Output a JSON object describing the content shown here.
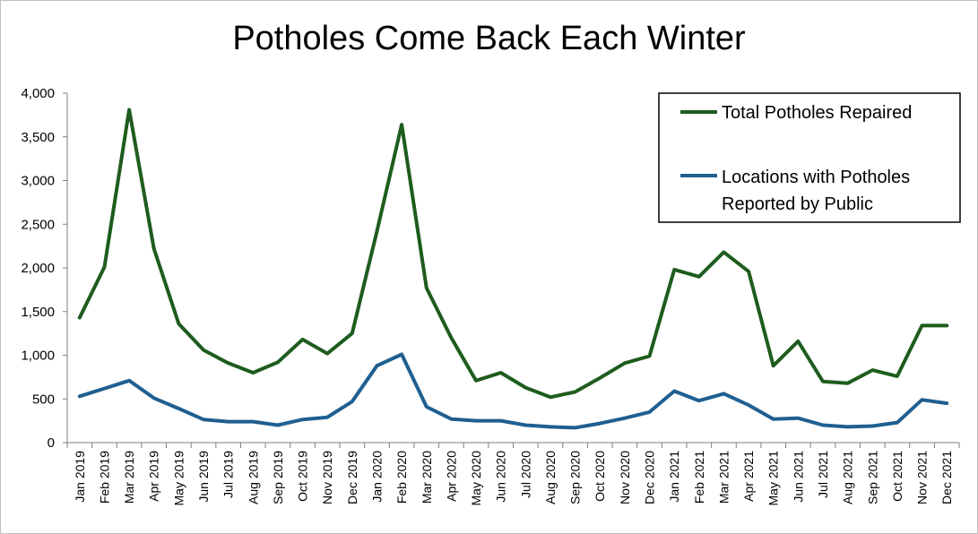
{
  "chart_data": {
    "type": "line",
    "title": "Potholes Come Back Each Winter",
    "xlabel": "",
    "ylabel": "",
    "ylim": [
      0,
      4000
    ],
    "yticks": [
      "0",
      "500",
      "1,000",
      "1,500",
      "2,000",
      "2,500",
      "3,000",
      "3,500",
      "4,000"
    ],
    "grid": false,
    "legend_position": "top-right",
    "categories": [
      "Jan 2019",
      "Feb 2019",
      "Mar 2019",
      "Apr 2019",
      "May 2019",
      "Jun 2019",
      "Jul 2019",
      "Aug 2019",
      "Sep 2019",
      "Oct 2019",
      "Nov 2019",
      "Dec 2019",
      "Jan 2020",
      "Feb 2020",
      "Mar 2020",
      "Apr 2020",
      "May 2020",
      "Jun 2020",
      "Jul 2020",
      "Aug 2020",
      "Sep 2020",
      "Oct 2020",
      "Nov 2020",
      "Dec 2020",
      "Jan 2021",
      "Feb 2021",
      "Mar 2021",
      "Apr 2021",
      "May 2021",
      "Jun 2021",
      "Jul 2021",
      "Aug 2021",
      "Sep 2021",
      "Oct 2021",
      "Nov 2021",
      "Dec 2021"
    ],
    "series": [
      {
        "name": "Total Potholes Repaired",
        "color": "#1e5c1e",
        "values": [
          1430,
          2010,
          3810,
          2220,
          1360,
          1060,
          910,
          800,
          920,
          1180,
          1020,
          1250,
          2420,
          3640,
          1770,
          1200,
          710,
          800,
          630,
          520,
          580,
          740,
          910,
          990,
          1980,
          1900,
          2180,
          1960,
          880,
          1160,
          700,
          680,
          830,
          760,
          1340,
          1340
        ]
      },
      {
        "name": "Locations with Potholes Reported by Public",
        "legend_lines": [
          "Locations with Potholes",
          "Reported by Public"
        ],
        "color": "#1f5f91",
        "values": [
          530,
          620,
          710,
          510,
          390,
          265,
          240,
          240,
          200,
          265,
          290,
          470,
          880,
          1010,
          410,
          270,
          250,
          250,
          200,
          180,
          170,
          220,
          280,
          350,
          590,
          480,
          560,
          430,
          270,
          280,
          200,
          180,
          190,
          230,
          490,
          450
        ]
      }
    ]
  }
}
